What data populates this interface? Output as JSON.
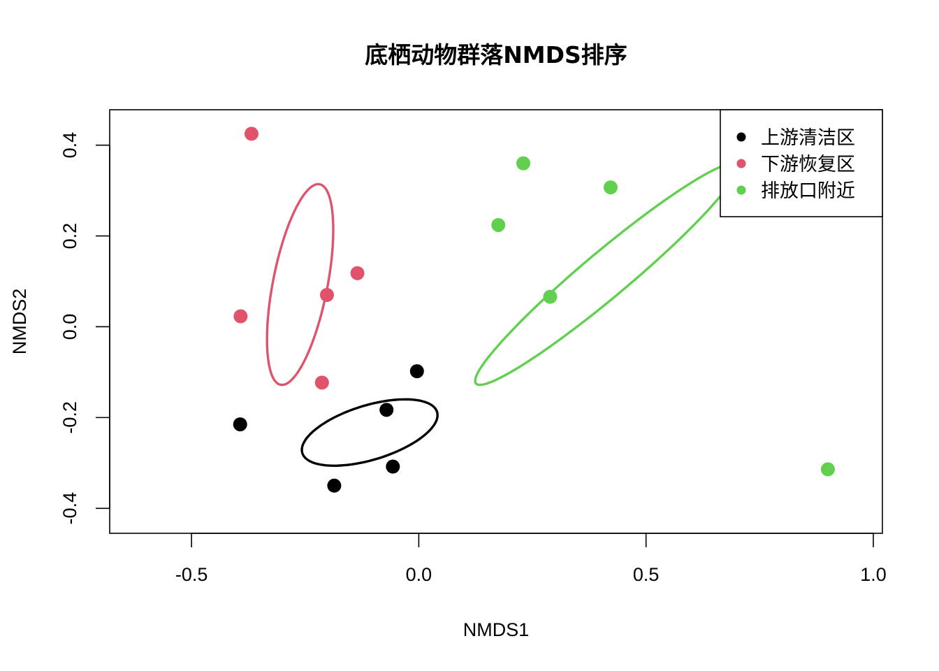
{
  "chart_data": {
    "type": "scatter",
    "title": "底栖动物群落NMDS排序",
    "xlabel": "NMDS1",
    "ylabel": "NMDS2",
    "xlim": [
      -0.68,
      1.02
    ],
    "ylim": [
      -0.455,
      0.478
    ],
    "x_ticks": [
      -0.5,
      0.0,
      0.5,
      1.0
    ],
    "x_tick_labels": [
      "-0.5",
      "0.0",
      "0.5",
      "1.0"
    ],
    "y_ticks": [
      -0.4,
      -0.2,
      0.0,
      0.2,
      0.4
    ],
    "y_tick_labels": [
      "-0.4",
      "-0.2",
      "0.0",
      "0.2",
      "0.4"
    ],
    "legend_position": "top-right",
    "series": [
      {
        "name": "上游清洁区",
        "color": "#000000",
        "points": [
          {
            "x": -0.393,
            "y": -0.215
          },
          {
            "x": -0.186,
            "y": -0.35
          },
          {
            "x": -0.071,
            "y": -0.183
          },
          {
            "x": -0.057,
            "y": -0.308
          },
          {
            "x": -0.004,
            "y": -0.098
          }
        ],
        "ellipse": {
          "cx": -0.108,
          "cy": -0.233,
          "rx": 0.155,
          "ry": 0.06,
          "angle_deg": 17
        }
      },
      {
        "name": "下游恢复区",
        "color": "#DF536B",
        "points": [
          {
            "x": -0.368,
            "y": 0.425
          },
          {
            "x": -0.392,
            "y": 0.023
          },
          {
            "x": -0.202,
            "y": 0.07
          },
          {
            "x": -0.135,
            "y": 0.118
          },
          {
            "x": -0.213,
            "y": -0.123
          }
        ],
        "ellipse": {
          "cx": -0.261,
          "cy": 0.093,
          "rx": 0.225,
          "ry": 0.06,
          "angle_deg": 79
        }
      },
      {
        "name": "排放口附近",
        "color": "#61D04F",
        "points": [
          {
            "x": 0.23,
            "y": 0.36
          },
          {
            "x": 0.422,
            "y": 0.307
          },
          {
            "x": 0.175,
            "y": 0.224
          },
          {
            "x": 0.289,
            "y": 0.066
          },
          {
            "x": 0.9,
            "y": -0.314
          }
        ],
        "ellipse": {
          "cx": 0.413,
          "cy": 0.116,
          "rx": 0.375,
          "ry": 0.05,
          "angle_deg": 40
        }
      }
    ]
  }
}
